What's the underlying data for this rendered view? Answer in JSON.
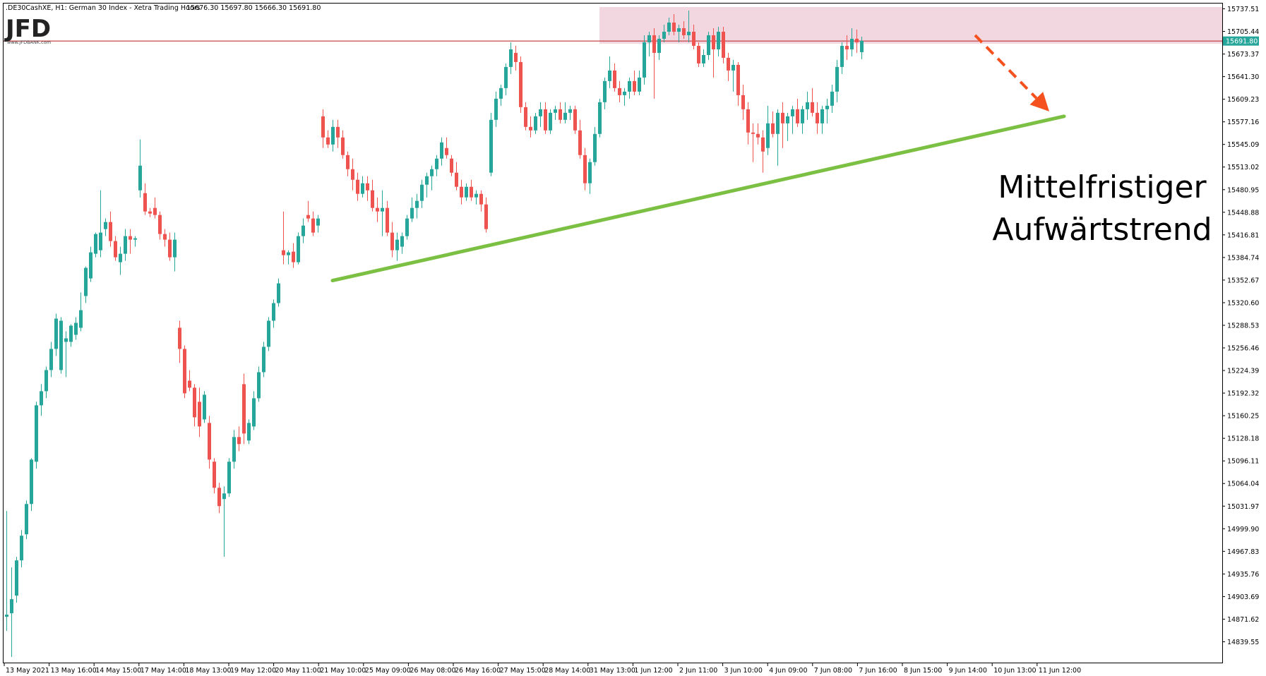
{
  "header": {
    "symbol": ".DE30CashXE, H1:  German 30 Index  - Xetra Trading Hours",
    "ohlc": "15676.30  15697.80  15666.30  15691.80"
  },
  "logo": {
    "text": "JFD",
    "sub": "www.JFDBANK.com"
  },
  "colors": {
    "bull": "#26a69a",
    "bear": "#ef5350",
    "trendline": "#7cc043",
    "zone_fill": "#f2d7e0",
    "arrow": "#f4511e",
    "price_line": "#b71c1c",
    "price_tag_bg": "#26a69a",
    "frame": "#000000"
  },
  "chart_data": {
    "type": "candlestick",
    "title": ".DE30CashXE, H1: German 30 Index - Xetra Trading Hours",
    "timeframe": "H1",
    "last_price": 15691.8,
    "ohlc_current": {
      "open": 15676.3,
      "high": 15697.8,
      "low": 15666.3,
      "close": 15691.8
    },
    "yticks": [
      "15737.51",
      "15705.44",
      "15673.37",
      "15641.30",
      "15609.23",
      "15577.16",
      "15545.09",
      "15513.02",
      "15480.95",
      "15448.88",
      "15416.81",
      "15384.74",
      "15352.67",
      "15320.60",
      "15288.53",
      "15256.46",
      "15224.39",
      "15192.32",
      "15160.25",
      "15128.18",
      "15096.11",
      "15064.04",
      "15031.97",
      "14999.90",
      "14967.83",
      "14935.76",
      "14903.69",
      "14871.62",
      "14839.55"
    ],
    "xticks": [
      "13 May 2021",
      "13 May 16:00",
      "14 May 15:00",
      "17 May 14:00",
      "18 May 13:00",
      "19 May 12:00",
      "20 May 11:00",
      "21 May 10:00",
      "25 May 09:00",
      "26 May 08:00",
      "26 May 16:00",
      "27 May 15:00",
      "28 May 14:00",
      "31 May 13:00",
      "1 Jun 12:00",
      "2 Jun 11:00",
      "3 Jun 10:00",
      "4 Jun 09:00",
      "7 Jun 08:00",
      "7 Jun 16:00",
      "8 Jun 15:00",
      "9 Jun 14:00",
      "10 Jun 13:00",
      "11 Jun 12:00"
    ],
    "ylim": [
      14810,
      15745
    ],
    "candles": [
      [
        14875,
        15025,
        14855,
        14878
      ],
      [
        14880,
        14945,
        14818,
        14900
      ],
      [
        14905,
        14960,
        14895,
        14955
      ],
      [
        14955,
        14998,
        14945,
        14990
      ],
      [
        14992,
        15040,
        14985,
        15035
      ],
      [
        15035,
        15100,
        15025,
        15098
      ],
      [
        15095,
        15180,
        15085,
        15175
      ],
      [
        15175,
        15205,
        15160,
        15195
      ],
      [
        15195,
        15230,
        15185,
        15225
      ],
      [
        15225,
        15265,
        15215,
        15255
      ],
      [
        15255,
        15305,
        15245,
        15298
      ],
      [
        15225,
        15300,
        15220,
        15295
      ],
      [
        15265,
        15280,
        15215,
        15270
      ],
      [
        15265,
        15290,
        15258,
        15288
      ],
      [
        15275,
        15300,
        15268,
        15292
      ],
      [
        15285,
        15335,
        15280,
        15310
      ],
      [
        15330,
        15372,
        15320,
        15370
      ],
      [
        15355,
        15400,
        15350,
        15392
      ],
      [
        15390,
        15420,
        15385,
        15418
      ],
      [
        15395,
        15480,
        15385,
        15420
      ],
      [
        15425,
        15440,
        15415,
        15435
      ],
      [
        15435,
        15450,
        15400,
        15408
      ],
      [
        15408,
        15415,
        15380,
        15385
      ],
      [
        15378,
        15400,
        15360,
        15390
      ],
      [
        15390,
        15425,
        15380,
        15415
      ],
      [
        15415,
        15425,
        15390,
        15410
      ],
      [
        15410,
        15415,
        15400,
        15412
      ],
      [
        15480,
        15552,
        15470,
        15515
      ],
      [
        15476,
        15490,
        15445,
        15450
      ],
      [
        15450,
        15455,
        15442,
        15447
      ],
      [
        15455,
        15470,
        15440,
        15445
      ],
      [
        15445,
        15450,
        15410,
        15418
      ],
      [
        15418,
        15425,
        15400,
        15410
      ],
      [
        15410,
        15420,
        15380,
        15385
      ],
      [
        15385,
        15420,
        15365,
        15410
      ],
      [
        15285,
        15295,
        15235,
        15255
      ],
      [
        15255,
        15260,
        15185,
        15192
      ],
      [
        15210,
        15225,
        15195,
        15200
      ],
      [
        15200,
        15205,
        15145,
        15158
      ],
      [
        15180,
        15200,
        15130,
        15145
      ],
      [
        15155,
        15195,
        15150,
        15190
      ],
      [
        15150,
        15160,
        15085,
        15098
      ],
      [
        15095,
        15100,
        15050,
        15058
      ],
      [
        15058,
        15065,
        15022,
        15032
      ],
      [
        15042,
        15060,
        14960,
        15050
      ],
      [
        15050,
        15100,
        15045,
        15095
      ],
      [
        15095,
        15140,
        15085,
        15130
      ],
      [
        15130,
        15145,
        15110,
        15120
      ],
      [
        15205,
        15220,
        15120,
        15135
      ],
      [
        15125,
        15155,
        15120,
        15150
      ],
      [
        15145,
        15195,
        15140,
        15185
      ],
      [
        15185,
        15230,
        15180,
        15222
      ],
      [
        15222,
        15265,
        15215,
        15258
      ],
      [
        15258,
        15300,
        15252,
        15295
      ],
      [
        15295,
        15325,
        15285,
        15320
      ],
      [
        15320,
        15355,
        15315,
        15348
      ],
      [
        15395,
        15450,
        15375,
        15388
      ],
      [
        15388,
        15395,
        15375,
        15392
      ],
      [
        15393,
        15405,
        15370,
        15378
      ],
      [
        15378,
        15420,
        15375,
        15415
      ],
      [
        15415,
        15440,
        15405,
        15430
      ],
      [
        15445,
        15465,
        15435,
        15440
      ],
      [
        15440,
        15450,
        15415,
        15420
      ],
      [
        15430,
        15445,
        15420,
        15440
      ],
      [
        15585,
        15595,
        15540,
        15555
      ],
      [
        15555,
        15565,
        15540,
        15545
      ],
      [
        15545,
        15580,
        15535,
        15570
      ],
      [
        15570,
        15580,
        15540,
        15555
      ],
      [
        15555,
        15565,
        15525,
        15530
      ],
      [
        15530,
        15535,
        15500,
        15510
      ],
      [
        15510,
        15525,
        15480,
        15495
      ],
      [
        15495,
        15505,
        15465,
        15475
      ],
      [
        15475,
        15500,
        15470,
        15490
      ],
      [
        15490,
        15500,
        15465,
        15480
      ],
      [
        15480,
        15495,
        15450,
        15455
      ],
      [
        15455,
        15470,
        15435,
        15450
      ],
      [
        15450,
        15480,
        15415,
        15455
      ],
      [
        15455,
        15465,
        15415,
        15420
      ],
      [
        15420,
        15435,
        15385,
        15395
      ],
      [
        15395,
        15420,
        15380,
        15410
      ],
      [
        15400,
        15420,
        15390,
        15415
      ],
      [
        15415,
        15445,
        15410,
        15440
      ],
      [
        15440,
        15470,
        15435,
        15455
      ],
      [
        15455,
        15475,
        15440,
        15465
      ],
      [
        15465,
        15495,
        15455,
        15488
      ],
      [
        15488,
        15505,
        15470,
        15500
      ],
      [
        15500,
        15515,
        15480,
        15510
      ],
      [
        15510,
        15530,
        15500,
        15525
      ],
      [
        15525,
        15555,
        15515,
        15548
      ],
      [
        15540,
        15555,
        15525,
        15530
      ],
      [
        15525,
        15530,
        15500,
        15505
      ],
      [
        15505,
        15520,
        15480,
        15485
      ],
      [
        15485,
        15495,
        15460,
        15470
      ],
      [
        15470,
        15490,
        15465,
        15485
      ],
      [
        15485,
        15495,
        15465,
        15470
      ],
      [
        15470,
        15480,
        15460,
        15475
      ],
      [
        15475,
        15480,
        15450,
        15460
      ],
      [
        15460,
        15470,
        15420,
        15425
      ],
      [
        15505,
        15590,
        15500,
        15580
      ],
      [
        15580,
        15620,
        15570,
        15610
      ],
      [
        15610,
        15630,
        15600,
        15625
      ],
      [
        15625,
        15660,
        15615,
        15655
      ],
      [
        15655,
        15690,
        15645,
        15680
      ],
      [
        15675,
        15685,
        15650,
        15662
      ],
      [
        15662,
        15670,
        15590,
        15598
      ],
      [
        15598,
        15605,
        15565,
        15570
      ],
      [
        15570,
        15585,
        15555,
        15565
      ],
      [
        15565,
        15590,
        15560,
        15585
      ],
      [
        15585,
        15605,
        15570,
        15595
      ],
      [
        15595,
        15605,
        15560,
        15565
      ],
      [
        15565,
        15595,
        15560,
        15590
      ],
      [
        15590,
        15600,
        15580,
        15595
      ],
      [
        15595,
        15605,
        15575,
        15580
      ],
      [
        15580,
        15605,
        15575,
        15590
      ],
      [
        15590,
        15600,
        15580,
        15595
      ],
      [
        15595,
        15600,
        15560,
        15565
      ],
      [
        15565,
        15580,
        15525,
        15530
      ],
      [
        15530,
        15540,
        15480,
        15490
      ],
      [
        15490,
        15525,
        15475,
        15520
      ],
      [
        15520,
        15570,
        15515,
        15560
      ],
      [
        15560,
        15610,
        15555,
        15605
      ],
      [
        15605,
        15640,
        15595,
        15635
      ],
      [
        15635,
        15670,
        15625,
        15650
      ],
      [
        15650,
        15660,
        15620,
        15625
      ],
      [
        15625,
        15635,
        15605,
        15615
      ],
      [
        15615,
        15625,
        15600,
        15620
      ],
      [
        15620,
        15640,
        15610,
        15635
      ],
      [
        15635,
        15650,
        15615,
        15620
      ],
      [
        15620,
        15650,
        15615,
        15640
      ],
      [
        15640,
        15700,
        15630,
        15690
      ],
      [
        15690,
        15705,
        15670,
        15700
      ],
      [
        15700,
        15710,
        15610,
        15675
      ],
      [
        15675,
        15700,
        15665,
        15695
      ],
      [
        15695,
        15715,
        15690,
        15705
      ],
      [
        15705,
        15725,
        15700,
        15718
      ],
      [
        15718,
        15730,
        15700,
        15705
      ],
      [
        15705,
        15715,
        15690,
        15710
      ],
      [
        15710,
        15720,
        15695,
        15700
      ],
      [
        15700,
        15735,
        15690,
        15705
      ],
      [
        15705,
        15715,
        15680,
        15685
      ],
      [
        15685,
        15690,
        15655,
        15660
      ],
      [
        15660,
        15680,
        15655,
        15672
      ],
      [
        15672,
        15705,
        15665,
        15700
      ],
      [
        15700,
        15710,
        15640,
        15680
      ],
      [
        15680,
        15712,
        15670,
        15705
      ],
      [
        15705,
        15712,
        15660,
        15668
      ],
      [
        15668,
        15675,
        15635,
        15650
      ],
      [
        15650,
        15665,
        15620,
        15658
      ],
      [
        15658,
        15662,
        15600,
        15615
      ],
      [
        15615,
        15630,
        15580,
        15595
      ],
      [
        15595,
        15605,
        15545,
        15562
      ],
      [
        15562,
        15575,
        15520,
        15560
      ],
      [
        15560,
        15575,
        15545,
        15555
      ],
      [
        15555,
        15565,
        15505,
        15535
      ],
      [
        15540,
        15600,
        15530,
        15575
      ],
      [
        15575,
        15592,
        15555,
        15560
      ],
      [
        15560,
        15595,
        15515,
        15590
      ],
      [
        15590,
        15605,
        15540,
        15575
      ],
      [
        15575,
        15590,
        15550,
        15585
      ],
      [
        15585,
        15600,
        15560,
        15595
      ],
      [
        15595,
        15610,
        15570,
        15575
      ],
      [
        15575,
        15600,
        15560,
        15595
      ],
      [
        15595,
        15620,
        15580,
        15605
      ],
      [
        15605,
        15625,
        15585,
        15590
      ],
      [
        15590,
        15605,
        15560,
        15575
      ],
      [
        15575,
        15600,
        15560,
        15595
      ],
      [
        15595,
        15610,
        15575,
        15600
      ],
      [
        15600,
        15630,
        15590,
        15620
      ],
      [
        15620,
        15665,
        15605,
        15655
      ],
      [
        15655,
        15690,
        15645,
        15685
      ],
      [
        15685,
        15700,
        15665,
        15680
      ],
      [
        15680,
        15710,
        15670,
        15695
      ],
      [
        15695,
        15708,
        15675,
        15690
      ],
      [
        15676,
        15698,
        15666,
        15692
      ]
    ],
    "annotations": {
      "text": [
        "Mittelfristiger",
        "Aufwärtstrend"
      ],
      "trendline": {
        "from_index": 66,
        "from_price": 15352,
        "to_index": 214,
        "to_price": 15585
      },
      "arrow": {
        "from_index": 196,
        "from_price": 15700,
        "to_index": 211,
        "to_price": 15592
      },
      "resistance_zone": {
        "from_index": 120,
        "price_low": 15688,
        "price_high": 15740
      }
    }
  }
}
